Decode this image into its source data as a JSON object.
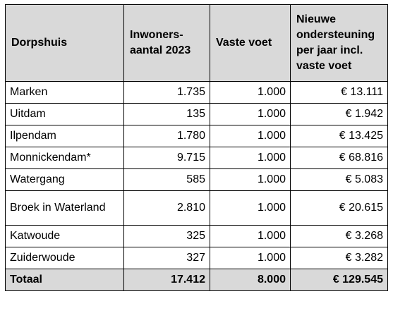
{
  "table": {
    "headers": [
      "Dorpshuis",
      "Inwoners-aantal 2023",
      "Vaste voet",
      "Nieuwe ondersteuning per jaar incl. vaste voet"
    ],
    "rows": [
      {
        "dorpshuis": "Marken",
        "inwoners": "1.735",
        "vaste_voet": "1.000",
        "ondersteuning": "€ 13.111"
      },
      {
        "dorpshuis": "Uitdam",
        "inwoners": "135",
        "vaste_voet": "1.000",
        "ondersteuning": "€ 1.942"
      },
      {
        "dorpshuis": "Ilpendam",
        "inwoners": "1.780",
        "vaste_voet": "1.000",
        "ondersteuning": "€ 13.425"
      },
      {
        "dorpshuis": "Monnickendam*",
        "inwoners": "9.715",
        "vaste_voet": "1.000",
        "ondersteuning": "€ 68.816"
      },
      {
        "dorpshuis": "Watergang",
        "inwoners": "585",
        "vaste_voet": "1.000",
        "ondersteuning": "€ 5.083"
      },
      {
        "dorpshuis": "Broek in Waterland",
        "inwoners": "2.810",
        "vaste_voet": "1.000",
        "ondersteuning": "€ 20.615"
      },
      {
        "dorpshuis": "Katwoude",
        "inwoners": "325",
        "vaste_voet": "1.000",
        "ondersteuning": "€ 3.268"
      },
      {
        "dorpshuis": "Zuiderwoude",
        "inwoners": "327",
        "vaste_voet": "1.000",
        "ondersteuning": "€ 3.282"
      }
    ],
    "total": {
      "label": "Totaal",
      "inwoners": "17.412",
      "vaste_voet": "8.000",
      "ondersteuning": "€ 129.545"
    }
  }
}
